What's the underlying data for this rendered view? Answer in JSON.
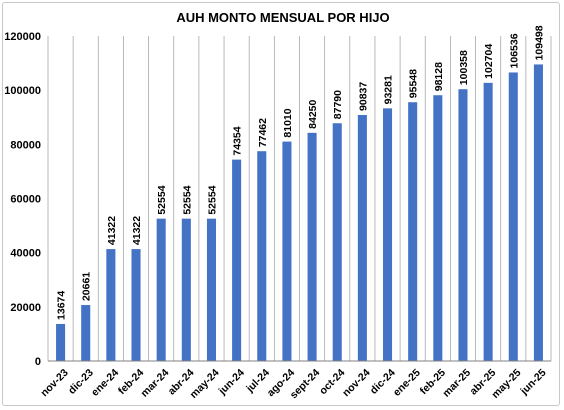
{
  "chart_data": {
    "type": "bar",
    "title": "AUH MONTO MENSUAL POR HIJO",
    "xlabel": "",
    "ylabel": "",
    "categories": [
      "nov-23",
      "dic-23",
      "ene-24",
      "feb-24",
      "mar-24",
      "abr-24",
      "may-24",
      "jun-24",
      "jul-24",
      "ago-24",
      "sept-24",
      "oct-24",
      "nov-24",
      "dic-24",
      "ene-25",
      "feb-25",
      "mar-25",
      "abr-25",
      "may-25",
      "jun-25"
    ],
    "values": [
      13674,
      20661,
      41322,
      41322,
      52554,
      52554,
      52554,
      74354,
      77462,
      81010,
      84250,
      87790,
      90837,
      93281,
      95548,
      98128,
      100358,
      102704,
      106536,
      109498
    ],
    "ylim": [
      0,
      120000
    ],
    "yticks": [
      0,
      20000,
      40000,
      60000,
      80000,
      100000,
      120000
    ],
    "ytick_labels": [
      "0",
      "20000",
      "40000",
      "60000",
      "80000",
      "100000",
      "120000"
    ],
    "grid": "vertical",
    "legend": "none",
    "bar_color": "#4472c4",
    "data_labels": "vertical-above"
  }
}
